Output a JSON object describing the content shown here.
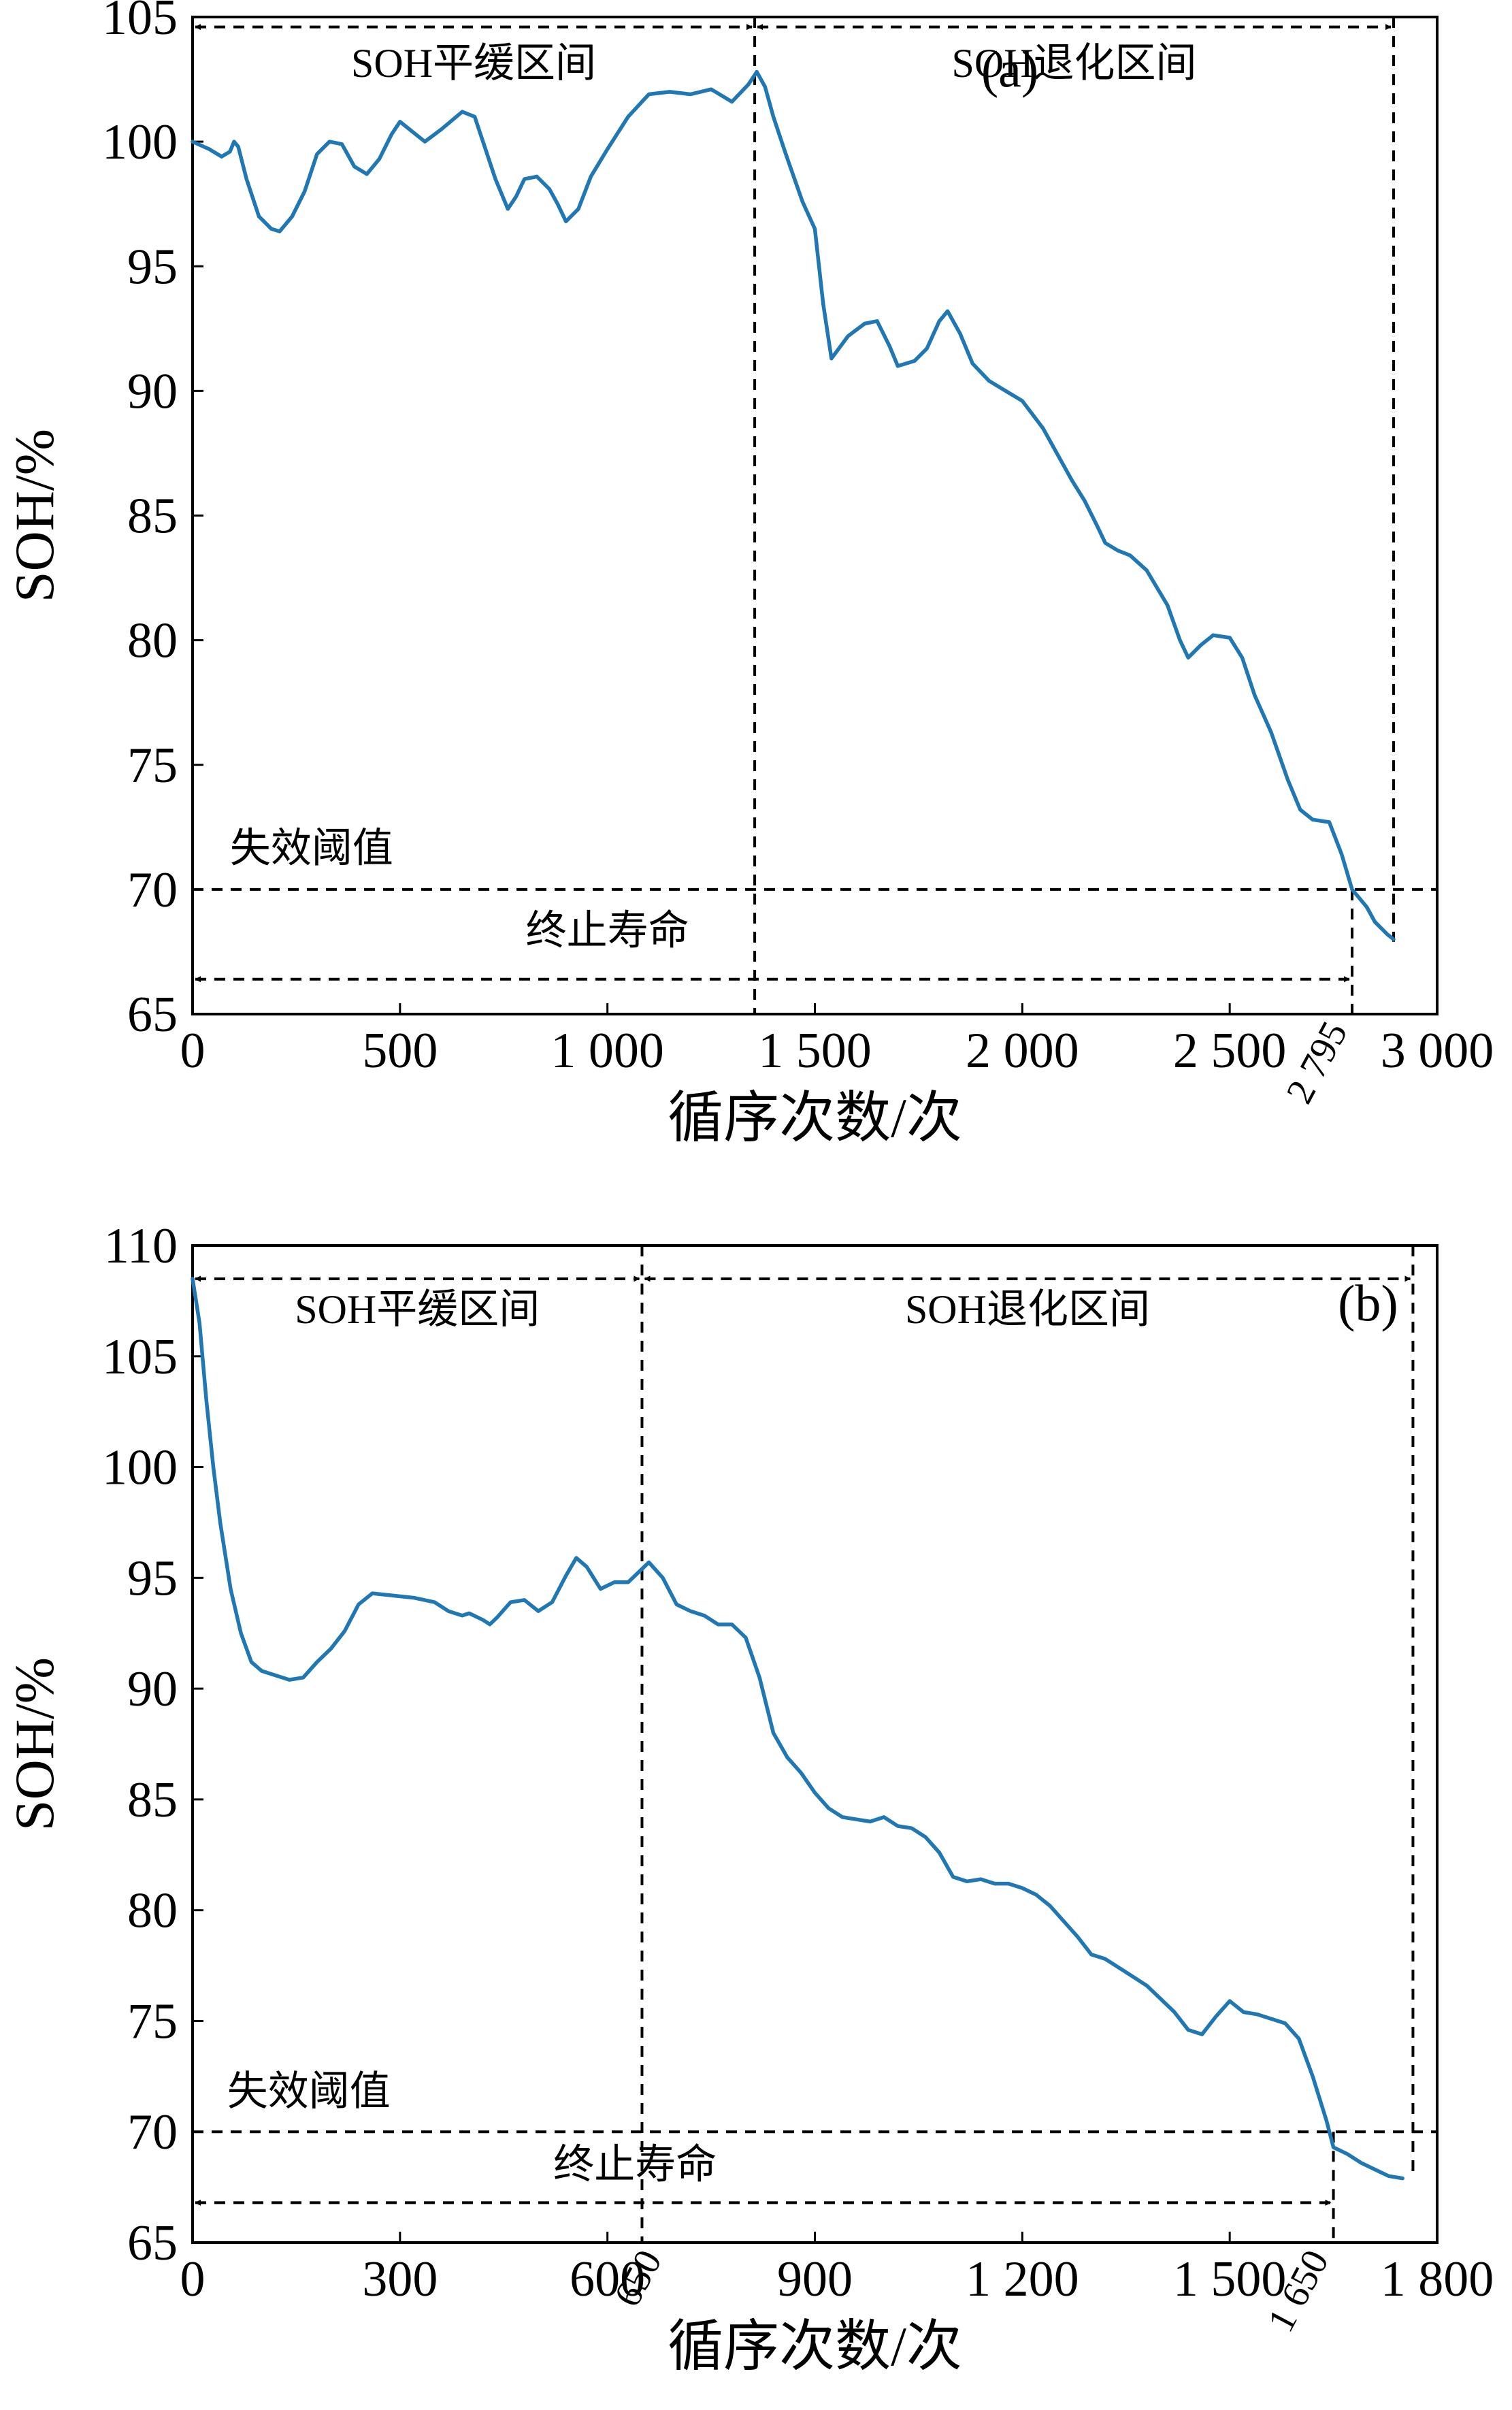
{
  "chart_data": [
    {
      "type": "line",
      "panel_label": "(a)",
      "xlabel": "循序次数/次",
      "ylabel": "SOH/%",
      "xlim": [
        0,
        3000
      ],
      "ylim": [
        65,
        105
      ],
      "x_ticks": [
        {
          "value": 0,
          "label": "0"
        },
        {
          "value": 500,
          "label": "500"
        },
        {
          "value": 1000,
          "label": "1 000"
        },
        {
          "value": 1500,
          "label": "1 500"
        },
        {
          "value": 2000,
          "label": "2 000"
        },
        {
          "value": 2500,
          "label": "2 500"
        },
        {
          "value": 3000,
          "label": "3 000"
        }
      ],
      "y_ticks": [
        {
          "value": 65,
          "label": "65"
        },
        {
          "value": 70,
          "label": "70"
        },
        {
          "value": 75,
          "label": "75"
        },
        {
          "value": 80,
          "label": "80"
        },
        {
          "value": 85,
          "label": "85"
        },
        {
          "value": 90,
          "label": "90"
        },
        {
          "value": 95,
          "label": "95"
        },
        {
          "value": 100,
          "label": "100"
        },
        {
          "value": 105,
          "label": "105"
        }
      ],
      "series": [
        {
          "color": "#1f77b4",
          "points": [
            [
              0,
              100
            ],
            [
              40,
              99.7
            ],
            [
              70,
              99.4
            ],
            [
              90,
              99.6
            ],
            [
              100,
              100
            ],
            [
              110,
              99.8
            ],
            [
              130,
              98.5
            ],
            [
              160,
              97
            ],
            [
              190,
              96.5
            ],
            [
              210,
              96.4
            ],
            [
              240,
              97
            ],
            [
              270,
              98
            ],
            [
              300,
              99.5
            ],
            [
              330,
              100
            ],
            [
              360,
              99.9
            ],
            [
              390,
              99
            ],
            [
              420,
              98.7
            ],
            [
              450,
              99.3
            ],
            [
              480,
              100.3
            ],
            [
              500,
              100.8
            ],
            [
              530,
              100.4
            ],
            [
              560,
              100
            ],
            [
              600,
              100.5
            ],
            [
              650,
              101.2
            ],
            [
              680,
              101
            ],
            [
              700,
              100
            ],
            [
              730,
              98.5
            ],
            [
              760,
              97.3
            ],
            [
              780,
              97.8
            ],
            [
              800,
              98.5
            ],
            [
              830,
              98.6
            ],
            [
              860,
              98.1
            ],
            [
              880,
              97.5
            ],
            [
              900,
              96.8
            ],
            [
              930,
              97.3
            ],
            [
              960,
              98.6
            ],
            [
              1000,
              99.7
            ],
            [
              1050,
              101
            ],
            [
              1100,
              101.9
            ],
            [
              1150,
              102
            ],
            [
              1200,
              101.9
            ],
            [
              1250,
              102.1
            ],
            [
              1300,
              101.6
            ],
            [
              1340,
              102.3
            ],
            [
              1360,
              102.8
            ],
            [
              1380,
              102.2
            ],
            [
              1400,
              101
            ],
            [
              1430,
              99.5
            ],
            [
              1470,
              97.6
            ],
            [
              1500,
              96.5
            ],
            [
              1520,
              93.5
            ],
            [
              1540,
              91.3
            ],
            [
              1580,
              92.2
            ],
            [
              1620,
              92.7
            ],
            [
              1650,
              92.8
            ],
            [
              1680,
              91.8
            ],
            [
              1700,
              91
            ],
            [
              1740,
              91.2
            ],
            [
              1770,
              91.7
            ],
            [
              1800,
              92.8
            ],
            [
              1820,
              93.2
            ],
            [
              1850,
              92.3
            ],
            [
              1880,
              91.1
            ],
            [
              1920,
              90.4
            ],
            [
              1960,
              90
            ],
            [
              2000,
              89.6
            ],
            [
              2050,
              88.5
            ],
            [
              2080,
              87.6
            ],
            [
              2120,
              86.4
            ],
            [
              2150,
              85.6
            ],
            [
              2180,
              84.6
            ],
            [
              2200,
              83.9
            ],
            [
              2230,
              83.6
            ],
            [
              2260,
              83.4
            ],
            [
              2300,
              82.8
            ],
            [
              2350,
              81.4
            ],
            [
              2380,
              80
            ],
            [
              2400,
              79.3
            ],
            [
              2430,
              79.8
            ],
            [
              2460,
              80.2
            ],
            [
              2500,
              80.1
            ],
            [
              2530,
              79.3
            ],
            [
              2560,
              77.8
            ],
            [
              2600,
              76.3
            ],
            [
              2640,
              74.4
            ],
            [
              2670,
              73.2
            ],
            [
              2700,
              72.8
            ],
            [
              2740,
              72.7
            ],
            [
              2770,
              71.4
            ],
            [
              2795,
              70
            ],
            [
              2830,
              69.3
            ],
            [
              2850,
              68.7
            ],
            [
              2880,
              68.2
            ],
            [
              2895,
              68
            ]
          ]
        }
      ],
      "failure_threshold": {
        "value": 70,
        "label": "失效阈值"
      },
      "end_of_life": {
        "value": 2795,
        "label": "终止寿命",
        "marker_label": "2 795"
      },
      "regions": [
        {
          "label": "SOH平缓区间",
          "start": 0,
          "end": 1355
        },
        {
          "label": "SOH退化区间",
          "start": 1355,
          "end": 2895
        }
      ]
    },
    {
      "type": "line",
      "panel_label": "(b)",
      "xlabel": "循序次数/次",
      "ylabel": "SOH/%",
      "xlim": [
        0,
        1800
      ],
      "ylim": [
        65,
        110
      ],
      "x_ticks": [
        {
          "value": 0,
          "label": "0"
        },
        {
          "value": 300,
          "label": "300"
        },
        {
          "value": 600,
          "label": "600"
        },
        {
          "value": 900,
          "label": "900"
        },
        {
          "value": 1200,
          "label": "1 200"
        },
        {
          "value": 1500,
          "label": "1 500"
        },
        {
          "value": 1800,
          "label": "1 800"
        }
      ],
      "y_ticks": [
        {
          "value": 65,
          "label": "65"
        },
        {
          "value": 70,
          "label": "70"
        },
        {
          "value": 75,
          "label": "75"
        },
        {
          "value": 80,
          "label": "80"
        },
        {
          "value": 85,
          "label": "85"
        },
        {
          "value": 90,
          "label": "90"
        },
        {
          "value": 95,
          "label": "95"
        },
        {
          "value": 100,
          "label": "100"
        },
        {
          "value": 105,
          "label": "105"
        },
        {
          "value": 110,
          "label": "110"
        }
      ],
      "series": [
        {
          "color": "#1f77b4",
          "points": [
            [
              0,
              108.5
            ],
            [
              10,
              106.5
            ],
            [
              20,
              103
            ],
            [
              30,
              100
            ],
            [
              40,
              97.5
            ],
            [
              55,
              94.5
            ],
            [
              70,
              92.5
            ],
            [
              85,
              91.2
            ],
            [
              100,
              90.8
            ],
            [
              120,
              90.6
            ],
            [
              140,
              90.4
            ],
            [
              160,
              90.5
            ],
            [
              180,
              91.2
            ],
            [
              200,
              91.8
            ],
            [
              220,
              92.6
            ],
            [
              240,
              93.8
            ],
            [
              260,
              94.3
            ],
            [
              290,
              94.2
            ],
            [
              320,
              94.1
            ],
            [
              350,
              93.9
            ],
            [
              370,
              93.5
            ],
            [
              390,
              93.3
            ],
            [
              400,
              93.4
            ],
            [
              420,
              93.1
            ],
            [
              430,
              92.9
            ],
            [
              440,
              93.2
            ],
            [
              460,
              93.9
            ],
            [
              480,
              94
            ],
            [
              500,
              93.5
            ],
            [
              520,
              93.9
            ],
            [
              540,
              95.1
            ],
            [
              555,
              95.9
            ],
            [
              570,
              95.5
            ],
            [
              590,
              94.5
            ],
            [
              610,
              94.8
            ],
            [
              630,
              94.8
            ],
            [
              650,
              95.4
            ],
            [
              660,
              95.7
            ],
            [
              680,
              95
            ],
            [
              700,
              93.8
            ],
            [
              720,
              93.5
            ],
            [
              740,
              93.3
            ],
            [
              760,
              92.9
            ],
            [
              780,
              92.9
            ],
            [
              800,
              92.3
            ],
            [
              820,
              90.5
            ],
            [
              840,
              88
            ],
            [
              860,
              86.9
            ],
            [
              880,
              86.2
            ],
            [
              900,
              85.3
            ],
            [
              920,
              84.6
            ],
            [
              940,
              84.2
            ],
            [
              960,
              84.1
            ],
            [
              980,
              84
            ],
            [
              1000,
              84.2
            ],
            [
              1020,
              83.8
            ],
            [
              1040,
              83.7
            ],
            [
              1060,
              83.3
            ],
            [
              1080,
              82.6
            ],
            [
              1100,
              81.5
            ],
            [
              1120,
              81.3
            ],
            [
              1140,
              81.4
            ],
            [
              1160,
              81.2
            ],
            [
              1180,
              81.2
            ],
            [
              1200,
              81
            ],
            [
              1220,
              80.7
            ],
            [
              1240,
              80.2
            ],
            [
              1260,
              79.5
            ],
            [
              1280,
              78.8
            ],
            [
              1300,
              78
            ],
            [
              1320,
              77.8
            ],
            [
              1340,
              77.4
            ],
            [
              1360,
              77
            ],
            [
              1380,
              76.6
            ],
            [
              1400,
              76
            ],
            [
              1420,
              75.4
            ],
            [
              1440,
              74.6
            ],
            [
              1460,
              74.4
            ],
            [
              1480,
              75.2
            ],
            [
              1500,
              75.9
            ],
            [
              1520,
              75.4
            ],
            [
              1540,
              75.3
            ],
            [
              1560,
              75.1
            ],
            [
              1580,
              74.9
            ],
            [
              1600,
              74.2
            ],
            [
              1620,
              72.5
            ],
            [
              1640,
              70.5
            ],
            [
              1650,
              69.3
            ],
            [
              1670,
              69
            ],
            [
              1690,
              68.6
            ],
            [
              1710,
              68.3
            ],
            [
              1730,
              68
            ],
            [
              1750,
              67.9
            ]
          ]
        }
      ],
      "failure_threshold": {
        "value": 70,
        "label": "失效阈值"
      },
      "end_of_life": {
        "value": 1650,
        "label": "终止寿命",
        "marker_label": "1 650"
      },
      "regions": [
        {
          "label": "SOH平缓区间",
          "start": 0,
          "end": 650,
          "marker_label": "650"
        },
        {
          "label": "SOH退化区间",
          "start": 650,
          "end": 1765
        }
      ]
    }
  ]
}
